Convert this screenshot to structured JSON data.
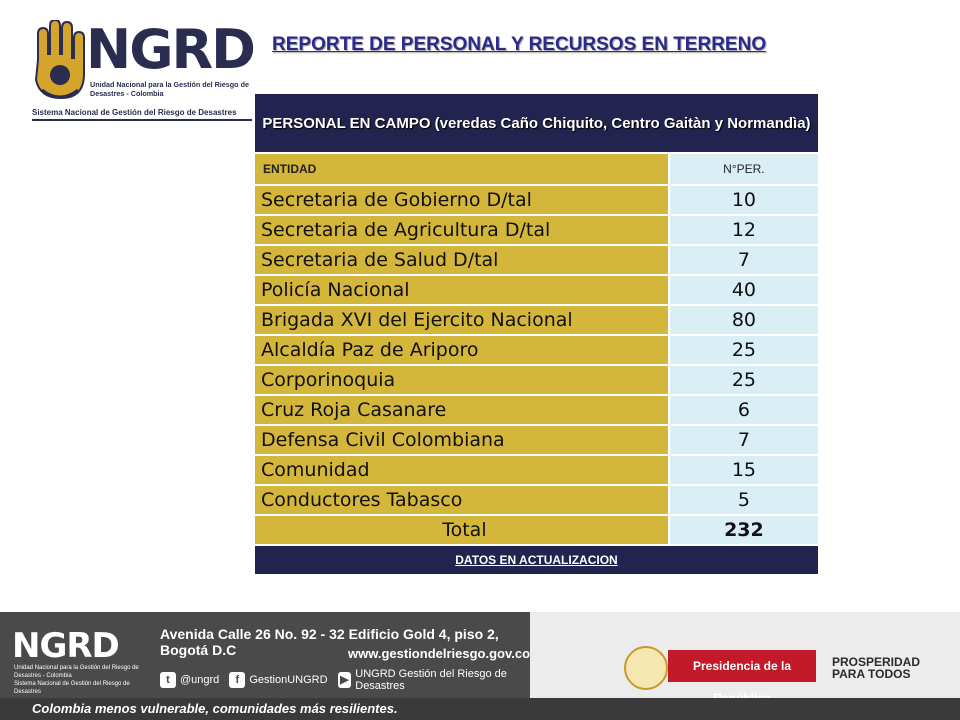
{
  "logo": {
    "name": "NGRD",
    "subtitle": "Unidad Nacional para la Gestión del Riesgo de Desastres - Colombia",
    "system": "Sistema Nacional de Gestión del Riesgo de Desastres"
  },
  "title": "REPORTE DE PERSONAL Y RECURSOS EN TERRENO",
  "table": {
    "header": "PERSONAL EN CAMPO (veredas Caño Chiquito, Centro Gaitàn y Normandìa)",
    "col_entity": "ENTIDAD",
    "col_count": "N°PER.",
    "rows": [
      {
        "entity": "Secretaria de Gobierno D/tal",
        "count": "10"
      },
      {
        "entity": "Secretaria de Agricultura D/tal",
        "count": "12"
      },
      {
        "entity": "Secretaria de Salud D/tal",
        "count": "7"
      },
      {
        "entity": "Policía Nacional",
        "count": "40"
      },
      {
        "entity": "Brigada XVI del Ejercito Nacional",
        "count": "80"
      },
      {
        "entity": "Alcaldía Paz de Ariporo",
        "count": "25"
      },
      {
        "entity": "Corporinoquia",
        "count": "25"
      },
      {
        "entity": "Cruz Roja Casanare",
        "count": "6"
      },
      {
        "entity": "Defensa Civil Colombiana",
        "count": "7"
      },
      {
        "entity": "Comunidad",
        "count": "15"
      },
      {
        "entity": "Conductores Tabasco",
        "count": "5"
      }
    ],
    "total_label": "Total",
    "total_value": "232",
    "footer": "DATOS EN ACTUALIZACION"
  },
  "banner": {
    "logo": "NGRD",
    "logo_sub": "Unidad Nacional para la Gestión del Riesgo de Desastres - Colombia",
    "logo_sys": "Sistema Nacional de Gestión del Riesgo de Desastres",
    "address": "Avenida Calle 26 No. 92 - 32 Edificio Gold 4, piso 2, Bogotá D.C",
    "website": "www.gestiondelriesgo.gov.co",
    "twitter": "@ungrd",
    "facebook": "GestionUNGRD",
    "youtube": "UNGRD Gestión del Riesgo de Desastres",
    "presidencia": "Presidencia de la República",
    "prosperidad_1": "PROSPERIDAD",
    "prosperidad_2": "PARA TODOS",
    "slogan": "Colombia menos vulnerable, comunidades más resilientes."
  },
  "colors": {
    "navy": "#22234f",
    "gold": "#d4b63a",
    "light_blue": "#d9eef5"
  }
}
